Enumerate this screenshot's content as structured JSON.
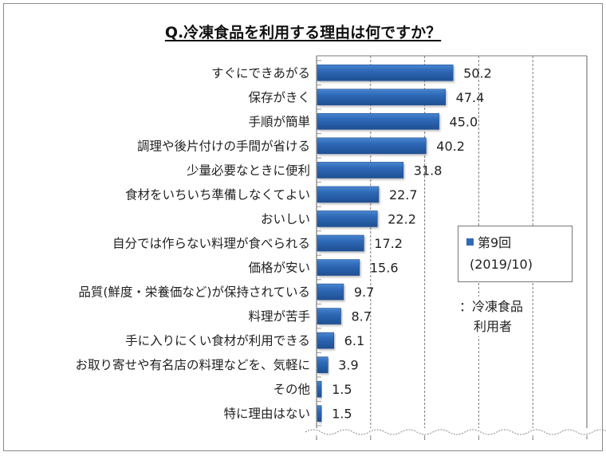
{
  "title": "Q.冷凍食品を利用する理由は何ですか？",
  "legend": {
    "series_name_line1": "第9回",
    "series_name_line2": "(2019/10)",
    "note_line1": "：冷凍食品",
    "note_line2": "利用者"
  },
  "colors": {
    "bar": "#2f6ab8",
    "bar_dark": "#1f4f92",
    "bar_light": "#4a86d0",
    "grid": "#7a7a7a",
    "axis": "#7a7a7a"
  },
  "chart_data": {
    "type": "bar",
    "orientation": "horizontal",
    "title": "Q.冷凍食品を利用する理由は何ですか？",
    "xlabel": "",
    "ylabel": "",
    "xlim": [
      0,
      100
    ],
    "grid": true,
    "gridline_values": [
      20,
      40,
      60,
      80
    ],
    "legend_position": "right",
    "categories": [
      "すぐにできあがる",
      "保存がきく",
      "手順が簡単",
      "調理や後片付けの手間が省ける",
      "少量必要なときに便利",
      "食材をいちいち準備しなくてよい",
      "おいしい",
      "自分では作らない料理が食べられる",
      "価格が安い",
      "品質(鮮度・栄養価など)が保持されている",
      "料理が苦手",
      "手に入りにくい食材が利用できる",
      "お取り寄せや有名店の料理などを、気軽に",
      "その他",
      "特に理由はない"
    ],
    "series": [
      {
        "name": "第9回 (2019/10)",
        "values": [
          50.2,
          47.4,
          45.0,
          40.2,
          31.8,
          22.7,
          22.2,
          17.2,
          15.6,
          9.7,
          8.7,
          6.1,
          3.9,
          1.5,
          1.5
        ],
        "labels": [
          "50.2",
          "47.4",
          "45.0",
          "40.2",
          "31.8",
          "22.7",
          "22.2",
          "17.2",
          "15.6",
          "9.7",
          "8.7",
          "6.1",
          "3.9",
          "1.5",
          "1.5"
        ]
      }
    ]
  }
}
